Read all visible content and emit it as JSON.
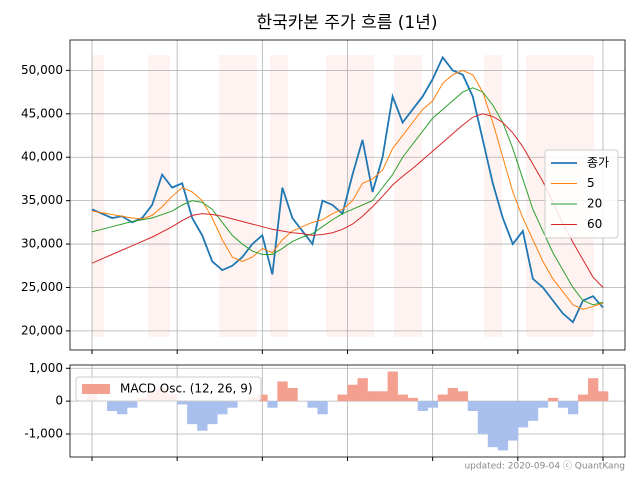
{
  "chart_data": [
    {
      "type": "line",
      "title": "한국카본 주가 흐름 (1년)",
      "ylim": [
        17800,
        53500
      ],
      "yticks": [
        {
          "value": 20000,
          "label": "20,000"
        },
        {
          "value": 25000,
          "label": "25,000"
        },
        {
          "value": 30000,
          "label": "30,000"
        },
        {
          "value": 35000,
          "label": "35,000"
        },
        {
          "value": 40000,
          "label": "40,000"
        },
        {
          "value": 45000,
          "label": "45,000"
        },
        {
          "value": 50000,
          "label": "50,000"
        }
      ],
      "grid": true,
      "legend": "right",
      "series": [
        {
          "name": "종가",
          "color": "#1f77b4",
          "values": [
            34000,
            33500,
            33000,
            33200,
            32500,
            33000,
            34500,
            38000,
            36500,
            37000,
            33000,
            31000,
            28000,
            27000,
            27500,
            28500,
            30000,
            31000,
            26500,
            36500,
            33000,
            31500,
            30000,
            35000,
            34500,
            33500,
            38000,
            42000,
            36000,
            40000,
            47000,
            44000,
            45500,
            47000,
            49000,
            51500,
            50000,
            49500,
            47000,
            42000,
            37000,
            33000,
            30000,
            31500,
            26000,
            25000,
            23500,
            22000,
            21000,
            23500,
            24000,
            22700
          ]
        },
        {
          "name": "5",
          "color": "#ff7f0e",
          "values": [
            33800,
            33600,
            33400,
            33200,
            33000,
            32900,
            33300,
            34300,
            35500,
            36500,
            36000,
            35000,
            33000,
            30500,
            28500,
            28000,
            28500,
            29500,
            29000,
            30500,
            31500,
            32000,
            32500,
            32800,
            33500,
            34000,
            35000,
            37000,
            37500,
            38500,
            41000,
            42500,
            44000,
            45500,
            46500,
            48500,
            49500,
            50000,
            49500,
            47500,
            44000,
            40000,
            36000,
            33000,
            30500,
            28000,
            26000,
            24500,
            23000,
            22500,
            22800,
            23200
          ]
        },
        {
          "name": "20",
          "color": "#2ca02c",
          "values": [
            31400,
            31700,
            32000,
            32300,
            32600,
            32800,
            33000,
            33400,
            33800,
            34500,
            35000,
            34800,
            34000,
            32500,
            31000,
            30000,
            29200,
            28800,
            28800,
            29500,
            30300,
            30800,
            31200,
            32000,
            32800,
            33500,
            34000,
            34500,
            35000,
            36500,
            38000,
            40000,
            41500,
            43000,
            44500,
            45500,
            46500,
            47500,
            48000,
            47500,
            46000,
            44000,
            41000,
            37500,
            34000,
            31500,
            29000,
            27000,
            25000,
            23500,
            23000,
            23300
          ]
        },
        {
          "name": "60",
          "color": "#d62728",
          "values": [
            27800,
            28300,
            28800,
            29300,
            29800,
            30300,
            30800,
            31400,
            32000,
            32700,
            33300,
            33500,
            33400,
            33200,
            32900,
            32600,
            32300,
            32000,
            31700,
            31500,
            31300,
            31200,
            31000,
            31100,
            31300,
            31700,
            32300,
            33200,
            34300,
            35500,
            36800,
            37800,
            38700,
            39700,
            40700,
            41700,
            42700,
            43700,
            44600,
            45000,
            44700,
            44000,
            42800,
            41200,
            39200,
            37200,
            34800,
            32400,
            30200,
            28200,
            26200,
            25000
          ]
        }
      ]
    },
    {
      "type": "area",
      "ylim": [
        -1700,
        1100
      ],
      "yticks": [
        {
          "value": -1000,
          "label": "-1,000"
        },
        0,
        {
          "value": 1000,
          "label": "1,000"
        }
      ],
      "grid": true,
      "legend": "upper left",
      "series": [
        {
          "name": "MACD Osc. (12, 26, 9)",
          "color": "#f4a090",
          "negative_color": "#a9c0ef",
          "values": [
            200,
            0,
            -300,
            -400,
            -200,
            100,
            300,
            400,
            200,
            -100,
            -700,
            -900,
            -700,
            -400,
            -200,
            0,
            100,
            200,
            -200,
            600,
            400,
            0,
            -200,
            -400,
            0,
            200,
            500,
            700,
            300,
            300,
            900,
            200,
            100,
            -300,
            -200,
            200,
            400,
            300,
            -300,
            -1000,
            -1400,
            -1500,
            -1200,
            -800,
            -600,
            -200,
            100,
            -200,
            -400,
            200,
            700,
            300
          ]
        }
      ]
    }
  ],
  "footer": "updated: 2020-09-04 ⓒ QuantKang"
}
